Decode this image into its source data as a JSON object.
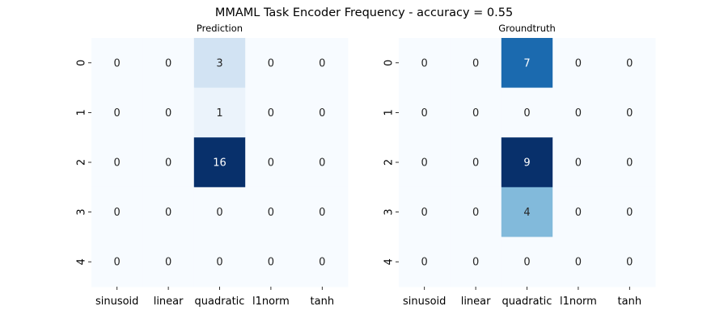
{
  "figure": {
    "suptitle": "MMAML Task Encoder Frequency - accuracy = 0.55"
  },
  "chart_data": [
    {
      "type": "heatmap",
      "title": "Prediction",
      "xlabel": "",
      "ylabel": "",
      "x_tick_labels": [
        "sinusoid",
        "linear",
        "quadratic",
        "l1norm",
        "tanh"
      ],
      "y_tick_labels": [
        "0",
        "1",
        "2",
        "3",
        "4"
      ],
      "values": [
        [
          0,
          0,
          3,
          0,
          0
        ],
        [
          0,
          0,
          1,
          0,
          0
        ],
        [
          0,
          0,
          16,
          0,
          0
        ],
        [
          0,
          0,
          0,
          0,
          0
        ],
        [
          0,
          0,
          0,
          0,
          0
        ]
      ],
      "colormap": "Blues",
      "vmin": 0,
      "vmax": 16,
      "colorbar": false,
      "annotations": true
    },
    {
      "type": "heatmap",
      "title": "Groundtruth",
      "xlabel": "",
      "ylabel": "",
      "x_tick_labels": [
        "sinusoid",
        "linear",
        "quadratic",
        "l1norm",
        "tanh"
      ],
      "y_tick_labels": [
        "0",
        "1",
        "2",
        "3",
        "4"
      ],
      "values": [
        [
          0,
          0,
          7,
          0,
          0
        ],
        [
          0,
          0,
          0,
          0,
          0
        ],
        [
          0,
          0,
          9,
          0,
          0
        ],
        [
          0,
          0,
          4,
          0,
          0
        ],
        [
          0,
          0,
          0,
          0,
          0
        ]
      ],
      "colormap": "Blues",
      "vmin": 0,
      "vmax": 9,
      "colorbar": false,
      "annotations": true
    }
  ]
}
